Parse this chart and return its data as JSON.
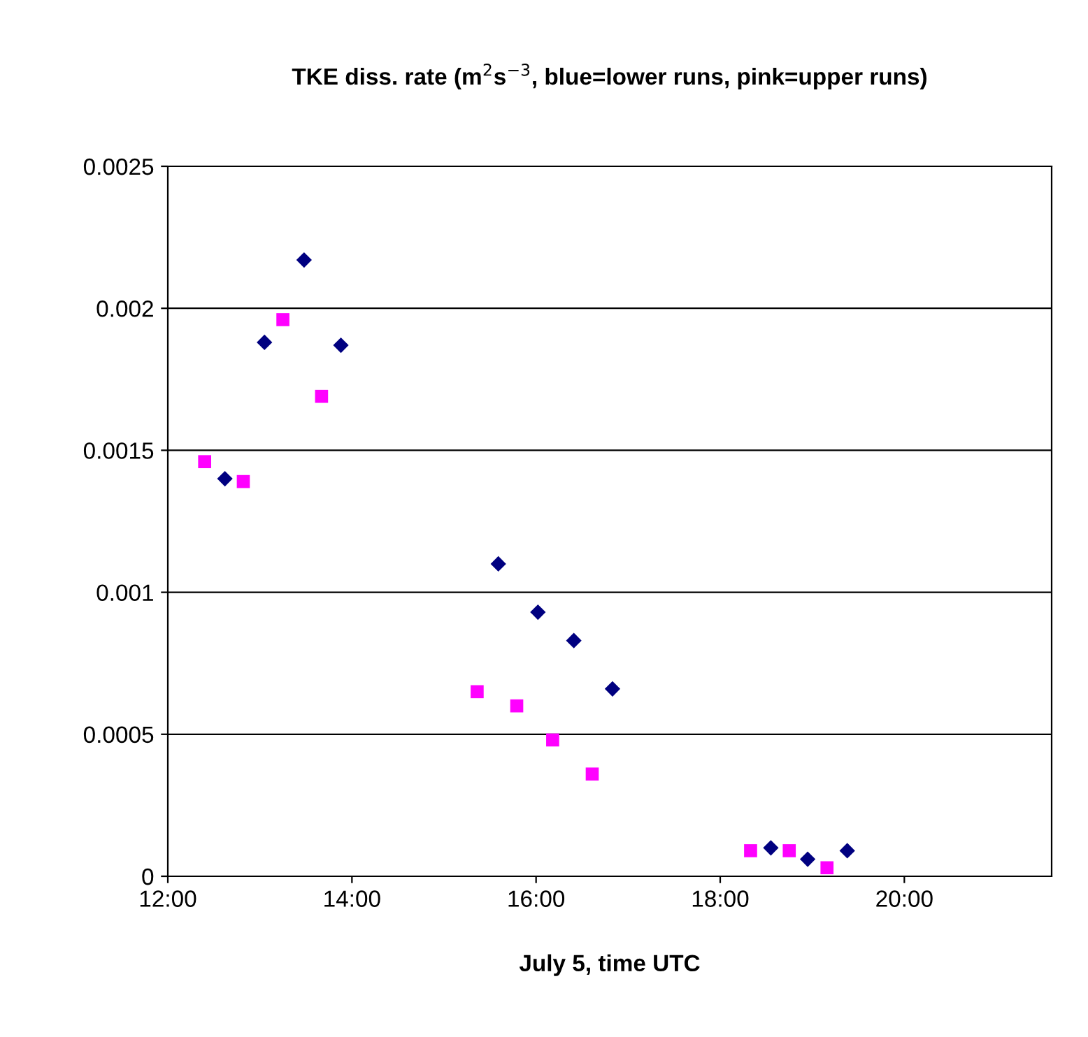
{
  "chart_data": {
    "type": "scatter",
    "title": "TKE diss. rate (m$^{2}$s$^{−3}$, blue=lower runs, pink=upper runs)",
    "xlabel": "July 5, time UTC",
    "xlim": [
      12,
      21.6
    ],
    "xticks": [
      {
        "value": 12,
        "label": "12:00"
      },
      {
        "value": 14,
        "label": "14:00"
      },
      {
        "value": 16,
        "label": "16:00"
      },
      {
        "value": 18,
        "label": "18:00"
      },
      {
        "value": 20,
        "label": "20:00"
      }
    ],
    "ylim": [
      0,
      0.0025
    ],
    "yticks": [
      0,
      0.0005,
      0.001,
      0.0015,
      0.002,
      0.0025
    ],
    "grid": "y",
    "series": [
      {
        "color": "#000080",
        "marker": "diamond",
        "x": [
          12.62,
          13.05,
          13.48,
          13.88,
          15.59,
          16.02,
          16.41,
          16.83,
          18.55,
          18.95,
          19.38
        ],
        "values": [
          0.0014,
          0.00188,
          0.00217,
          0.00187,
          0.0011,
          0.00093,
          0.00083,
          0.00066,
          0.0001,
          6e-05,
          9e-05
        ]
      },
      {
        "color": "#ff00ff",
        "marker": "square",
        "x": [
          12.4,
          12.82,
          13.25,
          13.67,
          15.36,
          15.79,
          16.18,
          16.61,
          18.33,
          18.75,
          19.16
        ],
        "values": [
          0.00146,
          0.00139,
          0.00196,
          0.00169,
          0.00065,
          0.0006,
          0.00048,
          0.00036,
          9e-05,
          9e-05,
          3e-05
        ]
      }
    ]
  }
}
